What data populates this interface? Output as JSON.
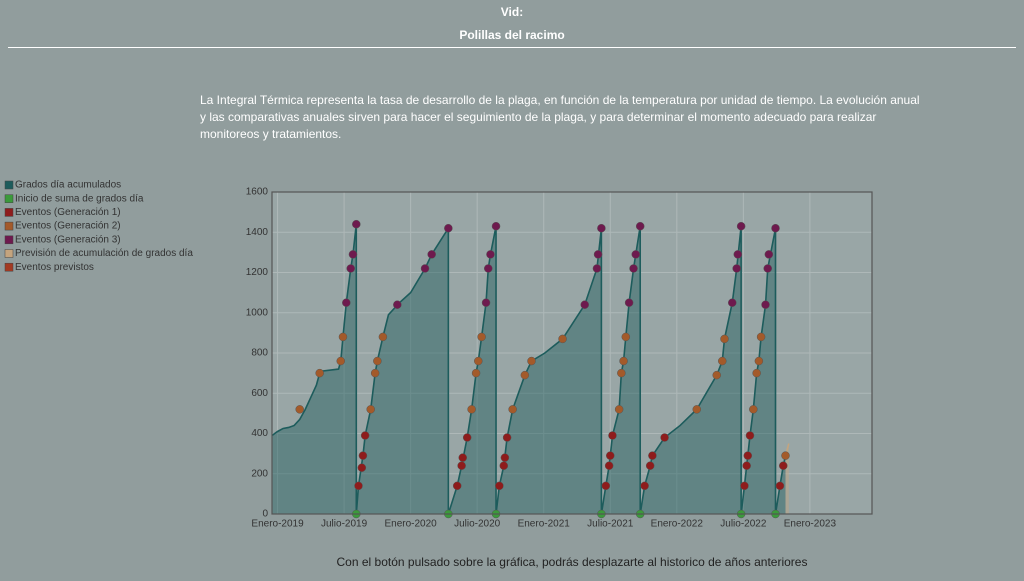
{
  "header": {
    "title": "Vid:",
    "subtitle": "Polillas del racimo"
  },
  "description": "La Integral Térmica representa la tasa de desarrollo de la plaga, en función de la temperatura por unidad de tiempo. La evolución anual y las comparativas anuales sirven para hacer el seguimiento de la plaga, y para determinar el momento adecuado para realizar monitoreos y tratamientos.",
  "footer": "Con el botón pulsado sobre la gráfica, podrás desplazarte al historico de años anteriores",
  "chart_data": {
    "type": "line",
    "grid": true,
    "legend": "left",
    "xlim": [
      -0.5,
      53.6
    ],
    "ylim": [
      0,
      1600
    ],
    "yticks": [
      0,
      200,
      400,
      600,
      800,
      1000,
      1200,
      1400,
      1600
    ],
    "xticks": [
      {
        "value": 0,
        "label": "Enero-2019"
      },
      {
        "value": 6,
        "label": "Julio-2019"
      },
      {
        "value": 12,
        "label": "Enero-2020"
      },
      {
        "value": 18,
        "label": "Julio-2020"
      },
      {
        "value": 24,
        "label": "Enero-2021"
      },
      {
        "value": 30,
        "label": "Julio-2021"
      },
      {
        "value": 36,
        "label": "Enero-2022"
      },
      {
        "value": 42,
        "label": "Julio-2022"
      },
      {
        "value": 48,
        "label": "Enero-2023"
      }
    ],
    "series": [
      {
        "name": "Grados día acumulados",
        "style": "area",
        "color": "#1d5c5c",
        "x": [
          -0.5,
          0,
          0.5,
          1,
          1.5,
          2,
          2.5,
          3,
          3.5,
          3.8,
          4.0,
          5.5,
          5.7,
          5.9,
          6.2,
          6.6,
          6.8,
          7.1,
          7.1,
          7.3,
          7.7,
          7.9,
          8.4,
          8.8,
          9.0,
          9.5,
          10.0,
          10.5,
          10.8,
          12.0,
          13.3,
          13.9,
          15.4,
          15.4,
          16.2,
          16.6,
          17.1,
          17.5,
          17.9,
          18.1,
          18.4,
          18.8,
          19.0,
          19.2,
          19.7,
          19.7,
          20.0,
          20.4,
          20.7,
          21.2,
          22.3,
          22.9,
          24.1,
          25.7,
          27.7,
          28.8,
          29.2,
          29.2,
          29.6,
          29.9,
          30.2,
          30.8,
          31.0,
          31.2,
          31.4,
          31.7,
          32.1,
          32.3,
          32.7,
          32.7,
          33.1,
          33.6,
          33.8,
          34.9,
          36.3,
          37.8,
          39.6,
          40.1,
          40.3,
          41.0,
          41.4,
          41.8,
          41.8,
          42.1,
          42.3,
          42.6,
          42.9,
          43.2,
          43.4,
          43.6,
          44.0,
          44.2,
          44.9,
          44.9,
          45.3,
          45.6,
          45.8
        ],
        "values": [
          390,
          410,
          425,
          430,
          440,
          470,
          520,
          580,
          640,
          700,
          710,
          720,
          760,
          880,
          1050,
          1220,
          1290,
          1440,
          0,
          140,
          290,
          390,
          520,
          700,
          760,
          880,
          990,
          1020,
          1040,
          1100,
          1220,
          1290,
          1420,
          0,
          140,
          240,
          380,
          520,
          700,
          760,
          880,
          1050,
          1220,
          1290,
          1430,
          0,
          140,
          240,
          380,
          520,
          690,
          760,
          800,
          870,
          1040,
          1220,
          1420,
          0,
          140,
          240,
          390,
          520,
          700,
          760,
          880,
          1050,
          1220,
          1290,
          1430,
          0,
          140,
          240,
          290,
          380,
          440,
          520,
          690,
          760,
          870,
          1050,
          1220,
          1430,
          0,
          140,
          240,
          390,
          520,
          700,
          760,
          880,
          1040,
          1220,
          1420,
          0,
          140,
          240,
          290
        ]
      },
      {
        "name": "Inicio de suma de grados día",
        "style": "markers",
        "color": "#3b9a3b",
        "x": [
          7.1,
          15.4,
          19.7,
          29.2,
          32.7,
          41.8,
          44.9
        ],
        "values": [
          0,
          0,
          0,
          0,
          0,
          0,
          0
        ]
      },
      {
        "name": "Eventos (Generación 1)",
        "style": "markers",
        "color": "#8e1c1c",
        "x": [
          7.3,
          7.6,
          7.7,
          7.9,
          16.2,
          16.6,
          16.7,
          17.1,
          20.0,
          20.4,
          20.5,
          20.7,
          29.6,
          29.9,
          30.0,
          30.2,
          33.1,
          33.6,
          33.8,
          34.9,
          42.1,
          42.3,
          42.4,
          42.6,
          45.3,
          45.6
        ],
        "values": [
          140,
          230,
          290,
          390,
          140,
          240,
          280,
          380,
          140,
          240,
          280,
          380,
          140,
          240,
          290,
          390,
          140,
          240,
          290,
          380,
          140,
          240,
          290,
          390,
          140,
          240
        ]
      },
      {
        "name": "Eventos (Generación 2)",
        "style": "markers",
        "color": "#a35a2a",
        "x": [
          2.0,
          3.8,
          5.7,
          5.9,
          8.4,
          8.8,
          9.0,
          9.5,
          17.5,
          17.9,
          18.1,
          18.4,
          21.2,
          22.3,
          22.9,
          25.7,
          30.8,
          31.0,
          31.2,
          31.4,
          37.8,
          39.6,
          40.1,
          40.3,
          42.9,
          43.2,
          43.4,
          43.6,
          45.8
        ],
        "values": [
          520,
          700,
          760,
          880,
          520,
          700,
          760,
          880,
          520,
          700,
          760,
          880,
          520,
          690,
          760,
          870,
          520,
          700,
          760,
          880,
          520,
          690,
          760,
          870,
          520,
          700,
          760,
          880,
          290
        ]
      },
      {
        "name": "Eventos (Generación 3)",
        "style": "markers",
        "color": "#6e1a4e",
        "x": [
          6.2,
          6.6,
          6.8,
          7.1,
          10.8,
          13.3,
          13.9,
          15.4,
          18.8,
          19.0,
          19.2,
          19.7,
          27.7,
          28.8,
          28.9,
          29.2,
          31.7,
          32.1,
          32.3,
          32.7,
          41.0,
          41.4,
          41.5,
          41.8,
          44.0,
          44.2,
          44.3,
          44.9
        ],
        "values": [
          1050,
          1220,
          1290,
          1440,
          1040,
          1220,
          1290,
          1420,
          1050,
          1220,
          1290,
          1430,
          1040,
          1220,
          1290,
          1420,
          1050,
          1220,
          1290,
          1430,
          1050,
          1220,
          1290,
          1430,
          1040,
          1220,
          1290,
          1420
        ]
      },
      {
        "name": "Previsión de acumulación de grados día",
        "style": "area",
        "color": "#c4a47e",
        "x": [
          45.8,
          46.1
        ],
        "values": [
          290,
          350
        ]
      },
      {
        "name": "Eventos previstos",
        "style": "markers",
        "color": "#a33a22",
        "x": [],
        "values": []
      }
    ]
  }
}
